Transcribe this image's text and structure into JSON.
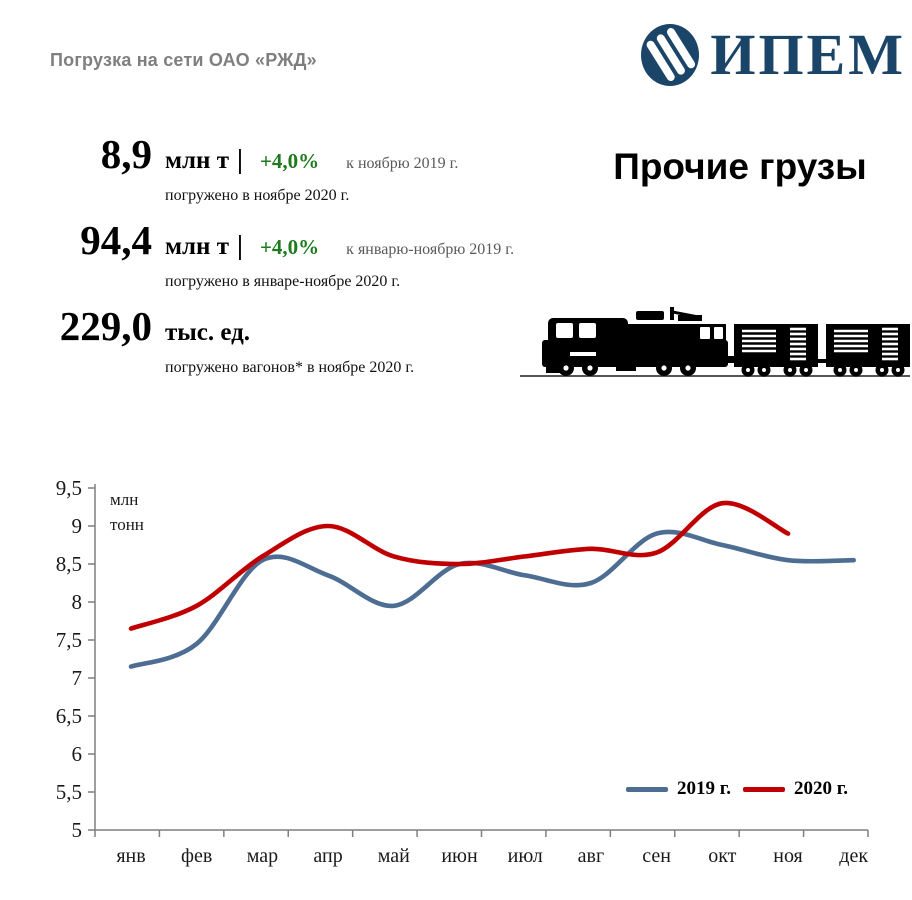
{
  "header": {
    "title": "Погрузка на сети ОАО «РЖД»",
    "logo_text": "ИПЕМ"
  },
  "section": {
    "title": "Прочие грузы"
  },
  "stats": [
    {
      "value": "8,9",
      "unit": "млн т",
      "separator": "|",
      "change": "+4,0%",
      "compare": "к ноябрю 2019 г.",
      "caption": "погружено в ноябре 2020 г."
    },
    {
      "value": "94,4",
      "unit": "млн т",
      "separator": "|",
      "change": "+4,0%",
      "compare": "к январю-ноябрю 2019 г.",
      "caption": "погружено в январе-ноябре 2020 г."
    },
    {
      "value": "229,0",
      "unit": "тыс. ед.",
      "separator": "",
      "change": "",
      "compare": "",
      "caption": "погружено вагонов* в ноябре 2020 г."
    }
  ],
  "icons": {
    "train": "train-icon",
    "logo": "ipem-logo-icon"
  },
  "colors": {
    "accent_navy": "#1b4568",
    "change_green": "#1e7a1e",
    "muted_gray": "#595959",
    "header_gray": "#7f7f7f",
    "line_2019": "#4d6d92",
    "line_2020": "#c00000",
    "axis_gray": "#7f7f7f"
  },
  "chart_data": {
    "type": "line",
    "title": "",
    "ylabel_lines": [
      "млн",
      "тонн"
    ],
    "categories": [
      "янв",
      "фев",
      "мар",
      "апр",
      "май",
      "июн",
      "июл",
      "авг",
      "сен",
      "окт",
      "ноя",
      "дек"
    ],
    "series": [
      {
        "name": "2019 г.",
        "color": "#4d6d92",
        "values": [
          7.15,
          7.45,
          8.55,
          8.35,
          7.95,
          8.5,
          8.35,
          8.25,
          8.9,
          8.75,
          8.55,
          8.55
        ]
      },
      {
        "name": "2020 г.",
        "color": "#c00000",
        "values": [
          7.65,
          7.95,
          8.6,
          9.0,
          8.6,
          8.5,
          8.6,
          8.7,
          8.65,
          9.3,
          8.9
        ]
      }
    ],
    "ylim": [
      5,
      9.5
    ],
    "ystep": 0.5,
    "ytick_labels": [
      "5",
      "5,5",
      "6",
      "6,5",
      "7",
      "7,5",
      "8",
      "8,5",
      "9",
      "9,5"
    ],
    "grid": false,
    "smooth": true,
    "legend_position": "bottom-right"
  }
}
